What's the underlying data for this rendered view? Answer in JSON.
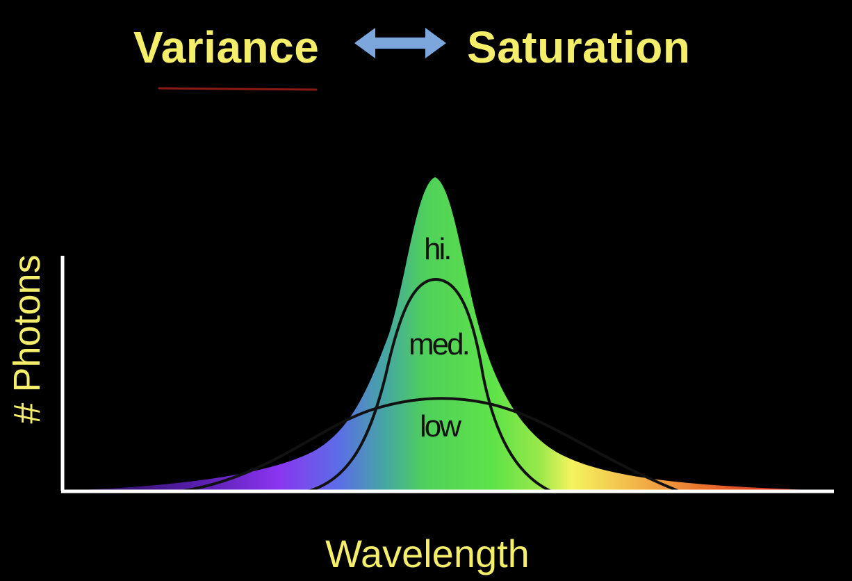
{
  "title": {
    "left": "Variance",
    "right": "Saturation",
    "color": "#F5EE6A",
    "arrow_color": "#7BA7DC",
    "underline_color": "#8B1A14"
  },
  "axes": {
    "y_label": "# Photons",
    "x_label": "Wavelength",
    "label_color": "#F5EE6A",
    "axis_color": "#FFFFFF"
  },
  "curves": [
    {
      "name": "high",
      "label": "hi."
    },
    {
      "name": "medium",
      "label": "med."
    },
    {
      "name": "low",
      "label": "low"
    }
  ],
  "spectrum_colors": [
    "#2E0A6E",
    "#7B2FE0",
    "#3F7BE8",
    "#4FD65A",
    "#5CE34A",
    "#F2F260",
    "#F0A040",
    "#E03020"
  ]
}
